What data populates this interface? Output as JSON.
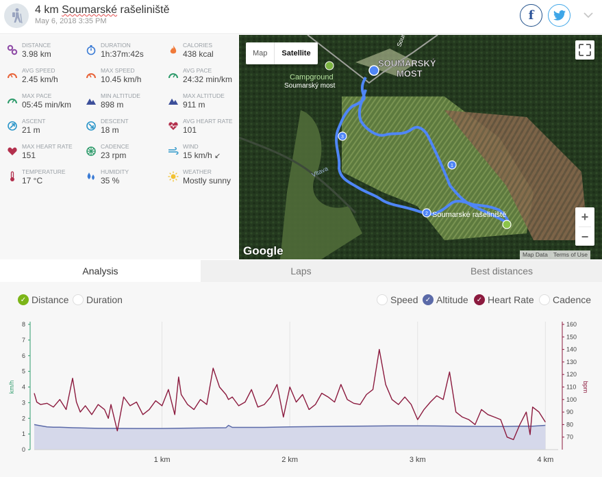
{
  "header": {
    "title_prefix": "4 km ",
    "title_main": "Soumarské",
    "title_suffix": " rašeliniště",
    "date": "May 6, 2018 3:35 PM",
    "facebook": "f"
  },
  "stats": [
    {
      "label": "DISTANCE",
      "value": "3.98 km",
      "icon": "distance-icon",
      "color": "#8e4aa6"
    },
    {
      "label": "DURATION",
      "value": "1h:37m:42s",
      "icon": "stopwatch-icon",
      "color": "#3a7bd5"
    },
    {
      "label": "CALORIES",
      "value": "438 kcal",
      "icon": "flame-icon",
      "color": "#f07a3a"
    },
    {
      "label": "AVG SPEED",
      "value": "2.45 km/h",
      "icon": "speedometer-icon",
      "color": "#e8643a"
    },
    {
      "label": "MAX SPEED",
      "value": "10.45 km/h",
      "icon": "speedometer-icon",
      "color": "#e8643a"
    },
    {
      "label": "AVG PACE",
      "value": "24:32 min/km",
      "icon": "pace-icon",
      "color": "#2e9b6b"
    },
    {
      "label": "MAX PACE",
      "value": "05:45 min/km",
      "icon": "pace-icon",
      "color": "#2e9b6b"
    },
    {
      "label": "MIN ALTITUDE",
      "value": "898 m",
      "icon": "mountain-icon",
      "color": "#3c4f9a"
    },
    {
      "label": "MAX ALTITUDE",
      "value": "911 m",
      "icon": "mountain-icon",
      "color": "#3c4f9a"
    },
    {
      "label": "ASCENT",
      "value": "21 m",
      "icon": "ascent-icon",
      "color": "#2a95c9"
    },
    {
      "label": "DESCENT",
      "value": "18 m",
      "icon": "descent-icon",
      "color": "#2a95c9"
    },
    {
      "label": "AVG HEART RATE",
      "value": "101",
      "icon": "heart-rate-icon",
      "color": "#b3304d"
    },
    {
      "label": "MAX HEART RATE",
      "value": "151",
      "icon": "heart-icon",
      "color": "#b3304d"
    },
    {
      "label": "CADENCE",
      "value": "23 rpm",
      "icon": "cadence-icon",
      "color": "#2e9b6b"
    },
    {
      "label": "WIND",
      "value": "15 km/h",
      "icon": "wind-icon",
      "color": "#2a95c9"
    },
    {
      "label": "TEMPERATURE",
      "value": "17 °C",
      "icon": "thermometer-icon",
      "color": "#b3304d"
    },
    {
      "label": "HUMIDITY",
      "value": "35 %",
      "icon": "humidity-icon",
      "color": "#3a7bd5"
    },
    {
      "label": "WEATHER",
      "value": "Mostly sunny",
      "icon": "sun-icon",
      "color": "#f2c232"
    }
  ],
  "map": {
    "type_map": "Map",
    "type_satellite": "Satellite",
    "place_label_line1": "SOUMARSKÝ",
    "place_label_line2": "MOST",
    "campground_line1": "Campground",
    "campground_line2": "Soumarský most",
    "bog_label": "Soumarské rašeliniště",
    "river_label": "Vltava",
    "road_label": "Soum",
    "markers": [
      "1",
      "2",
      "3"
    ],
    "zoom_in": "+",
    "zoom_out": "−",
    "google": "Google",
    "map_data": "Map Data",
    "terms": "Terms of Use",
    "route_color": "#4f86f7"
  },
  "tabs": [
    "Analysis",
    "Laps",
    "Best distances"
  ],
  "xaxis_options": [
    {
      "label": "Distance",
      "checked": true,
      "color": "#7cb518"
    },
    {
      "label": "Duration",
      "checked": false,
      "color": "#7cb518"
    }
  ],
  "series_options": [
    {
      "label": "Speed",
      "checked": false,
      "color": "#3a7bd5"
    },
    {
      "label": "Altitude",
      "checked": true,
      "color": "#5b6aa8"
    },
    {
      "label": "Heart Rate",
      "checked": true,
      "color": "#8b1a3e"
    },
    {
      "label": "Cadence",
      "checked": false,
      "color": "#3a7bd5"
    }
  ],
  "chart_data": {
    "type": "line",
    "xlabel": "",
    "ylabel_left": "km/h",
    "ylabel_right": "bpm",
    "x_ticks": [
      "1 km",
      "2 km",
      "3 km",
      "4 km"
    ],
    "x_tick_values": [
      1,
      2,
      3,
      4
    ],
    "xlim": [
      0,
      4.1
    ],
    "ylim_left": [
      0,
      8
    ],
    "y_ticks_left": [
      0,
      1,
      2,
      3,
      4,
      5,
      6,
      7,
      8
    ],
    "ylim_right": [
      60,
      160
    ],
    "y_ticks_right": [
      70,
      80,
      90,
      100,
      110,
      120,
      130,
      140,
      150,
      160
    ],
    "series": [
      {
        "name": "Altitude",
        "axis": "left",
        "color": "#5b6aa8",
        "fill": "#d5d8ea",
        "x": [
          0,
          0.03,
          0.1,
          0.15,
          0.2,
          0.3,
          0.5,
          0.8,
          1.0,
          1.3,
          1.5,
          1.52,
          1.55,
          1.8,
          2.0,
          2.3,
          2.5,
          2.8,
          3.0,
          3.3,
          3.5,
          3.7,
          3.8,
          3.9,
          4.0
        ],
        "y": [
          1.6,
          1.55,
          1.45,
          1.43,
          1.43,
          1.4,
          1.36,
          1.35,
          1.35,
          1.38,
          1.4,
          1.55,
          1.42,
          1.42,
          1.45,
          1.48,
          1.5,
          1.52,
          1.52,
          1.5,
          1.48,
          1.48,
          1.5,
          1.5,
          1.55
        ]
      },
      {
        "name": "Heart Rate",
        "axis": "right",
        "color": "#8b1a3e",
        "x": [
          0,
          0.02,
          0.05,
          0.1,
          0.15,
          0.2,
          0.25,
          0.3,
          0.33,
          0.36,
          0.4,
          0.45,
          0.5,
          0.55,
          0.58,
          0.6,
          0.65,
          0.7,
          0.75,
          0.8,
          0.85,
          0.9,
          0.95,
          1.0,
          1.05,
          1.1,
          1.13,
          1.15,
          1.2,
          1.25,
          1.3,
          1.35,
          1.4,
          1.45,
          1.5,
          1.52,
          1.55,
          1.6,
          1.65,
          1.7,
          1.75,
          1.8,
          1.85,
          1.9,
          1.95,
          2.0,
          2.05,
          2.1,
          2.15,
          2.2,
          2.25,
          2.3,
          2.35,
          2.4,
          2.45,
          2.5,
          2.55,
          2.6,
          2.65,
          2.7,
          2.75,
          2.8,
          2.85,
          2.9,
          2.95,
          3.0,
          3.05,
          3.1,
          3.15,
          3.2,
          3.25,
          3.3,
          3.35,
          3.4,
          3.45,
          3.5,
          3.55,
          3.6,
          3.65,
          3.7,
          3.75,
          3.8,
          3.85,
          3.88,
          3.9,
          3.95,
          4.0
        ],
        "y": [
          105,
          98,
          96,
          97,
          94,
          100,
          92,
          117,
          98,
          90,
          95,
          88,
          96,
          92,
          85,
          96,
          75,
          102,
          95,
          98,
          88,
          92,
          99,
          95,
          108,
          88,
          118,
          104,
          96,
          92,
          100,
          96,
          125,
          110,
          104,
          100,
          102,
          95,
          98,
          108,
          94,
          96,
          102,
          112,
          86,
          110,
          98,
          104,
          92,
          96,
          105,
          102,
          98,
          112,
          100,
          97,
          96,
          104,
          108,
          140,
          112,
          100,
          96,
          102,
          96,
          84,
          92,
          98,
          103,
          100,
          122,
          90,
          86,
          84,
          80,
          92,
          88,
          86,
          84,
          70,
          68,
          80,
          90,
          72,
          94,
          90,
          82
        ]
      }
    ]
  }
}
